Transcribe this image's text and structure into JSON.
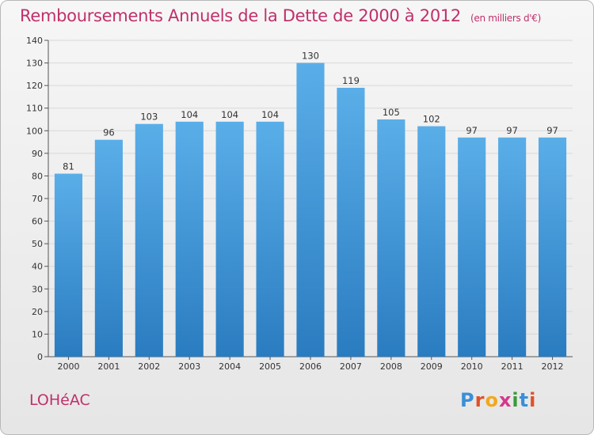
{
  "header": {
    "title": "Remboursements Annuels de la Dette de 2000 à 2012",
    "unit": "(en milliers d'€)"
  },
  "footer": {
    "commune": "LOHéAC",
    "logo": "Proxiti",
    "logo_colors": [
      "#3a8fd8",
      "#e0502a",
      "#f2a81d",
      "#d23a8a",
      "#3a9a3a",
      "#3a8fd8",
      "#e0502a"
    ]
  },
  "colors": {
    "bar_top": "#5aaee8",
    "bar_bottom": "#2a7cc0",
    "title": "#c0306a",
    "grid": "#d8d8d8",
    "axis": "#555555"
  },
  "chart_data": {
    "type": "bar",
    "categories": [
      "2000",
      "2001",
      "2002",
      "2003",
      "2004",
      "2005",
      "2006",
      "2007",
      "2008",
      "2009",
      "2010",
      "2011",
      "2012"
    ],
    "values": [
      81,
      96,
      103,
      104,
      104,
      104,
      130,
      119,
      105,
      102,
      97,
      97,
      97
    ],
    "title": "Remboursements Annuels de la Dette de 2000 à 2012",
    "ylim": [
      0,
      140
    ],
    "yticks": [
      0,
      10,
      20,
      30,
      40,
      50,
      60,
      70,
      80,
      90,
      100,
      110,
      120,
      130,
      140
    ],
    "grid": true,
    "data_labels": true
  }
}
